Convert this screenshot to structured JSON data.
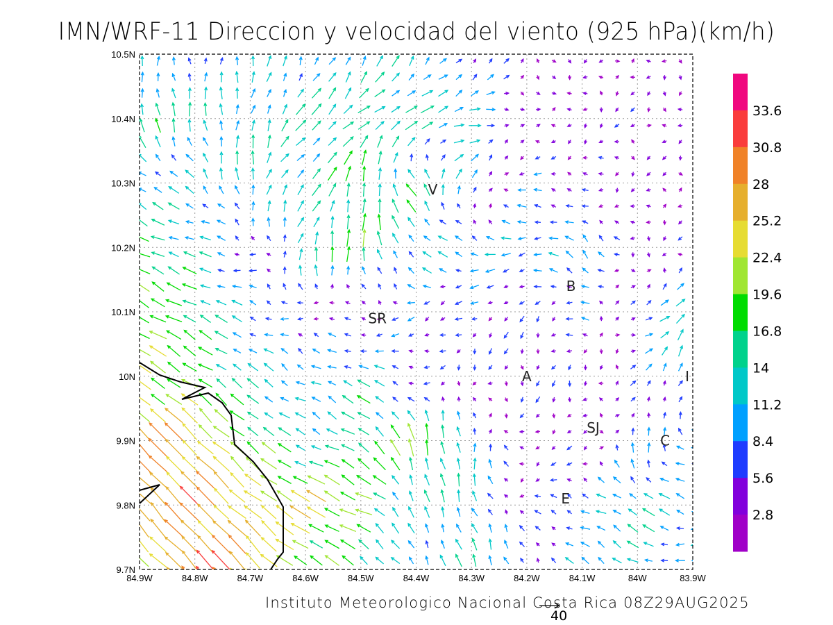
{
  "title": "IMN/WRF-11 Direccion y velocidad del viento (925 hPa)(km/h)",
  "footer": "Instituto Meteorologico Nacional Costa Rica  08Z29AUG2025",
  "reference_vector": {
    "value": 40,
    "label": "40"
  },
  "chart_data": {
    "type": "vector-field",
    "units": "km/h",
    "level": "925 hPa",
    "lon_range": [
      -84.9,
      -83.9
    ],
    "lat_range": [
      9.7,
      10.5
    ],
    "grid": true,
    "x_ticks": [
      "84.9W",
      "84.8W",
      "84.7W",
      "84.6W",
      "84.5W",
      "84.4W",
      "84.3W",
      "84.2W",
      "84.1W",
      "84W",
      "83.9W"
    ],
    "y_ticks": [
      "9.7N",
      "9.8N",
      "9.9N",
      "10N",
      "10.1N",
      "10.2N",
      "10.3N",
      "10.4N",
      "10.5N"
    ],
    "colorbar": {
      "labels": [
        "2.8",
        "5.6",
        "8.4",
        "11.2",
        "14",
        "16.8",
        "19.6",
        "22.4",
        "25.2",
        "28",
        "30.8",
        "33.6"
      ],
      "colors": [
        "#a000c8",
        "#8200dc",
        "#1e3cff",
        "#00a0ff",
        "#00c8c8",
        "#00d28c",
        "#00dc00",
        "#a0e632",
        "#e6dc32",
        "#e6af2d",
        "#f08228",
        "#fa3c3c",
        "#f0087f"
      ]
    },
    "places": [
      {
        "label": "V",
        "lon": -84.37,
        "lat": 10.29
      },
      {
        "label": "B",
        "lon": -84.12,
        "lat": 10.14
      },
      {
        "label": "SR",
        "lon": -84.47,
        "lat": 10.09
      },
      {
        "label": "A",
        "lon": -84.2,
        "lat": 10.0
      },
      {
        "label": "I",
        "lon": -83.91,
        "lat": 10.0
      },
      {
        "label": "SJ",
        "lon": -84.08,
        "lat": 9.92
      },
      {
        "label": "C",
        "lon": -83.95,
        "lat": 9.9
      },
      {
        "label": "E",
        "lon": -84.13,
        "lat": 9.81
      }
    ],
    "u": [
      [
        0,
        0,
        1,
        3,
        5,
        5,
        4,
        2,
        -1,
        -1,
        -1
      ],
      [
        -3,
        -2,
        2,
        10,
        12,
        14,
        12,
        4,
        -3,
        -2,
        -1
      ],
      [
        -10,
        -8,
        0,
        10,
        3,
        -10,
        8,
        -8,
        -4,
        -2,
        -1
      ],
      [
        -15,
        -12,
        -5,
        3,
        0,
        -8,
        -10,
        -10,
        -8,
        -2,
        -2
      ],
      [
        -18,
        -15,
        -8,
        -5,
        -3,
        -6,
        -6,
        -2,
        -8,
        8,
        10
      ],
      [
        -18,
        -15,
        -10,
        -8,
        -12,
        -5,
        -1,
        -1,
        -2,
        4,
        5
      ],
      [
        -20,
        -18,
        -15,
        -10,
        -14,
        -5,
        0,
        -3,
        -2,
        3,
        -8
      ],
      [
        -18,
        -20,
        -18,
        -22,
        -18,
        -3,
        -4,
        -4,
        -8,
        -12,
        -10
      ],
      [
        -15,
        -20,
        -18,
        -15,
        -10,
        -5,
        -5,
        -2,
        -8,
        -10,
        -8
      ]
    ],
    "v": [
      [
        8,
        8,
        9,
        10,
        10,
        10,
        6,
        2,
        -1,
        -1,
        -1
      ],
      [
        15,
        14,
        12,
        10,
        10,
        6,
        2,
        0,
        -2,
        -2,
        -2
      ],
      [
        5,
        6,
        15,
        8,
        18,
        12,
        8,
        0,
        0,
        -1,
        -1
      ],
      [
        8,
        3,
        0,
        15,
        18,
        8,
        2,
        -1,
        8,
        -2,
        -2
      ],
      [
        10,
        8,
        3,
        0,
        -1,
        -2,
        -3,
        -5,
        2,
        2,
        15
      ],
      [
        12,
        10,
        8,
        5,
        5,
        -1,
        -4,
        -5,
        -4,
        3,
        10
      ],
      [
        20,
        18,
        12,
        4,
        10,
        20,
        12,
        -2,
        -3,
        10,
        3
      ],
      [
        20,
        20,
        15,
        12,
        8,
        10,
        12,
        0,
        4,
        8,
        2
      ],
      [
        15,
        22,
        20,
        10,
        8,
        10,
        12,
        8,
        5,
        5,
        -2
      ]
    ]
  }
}
